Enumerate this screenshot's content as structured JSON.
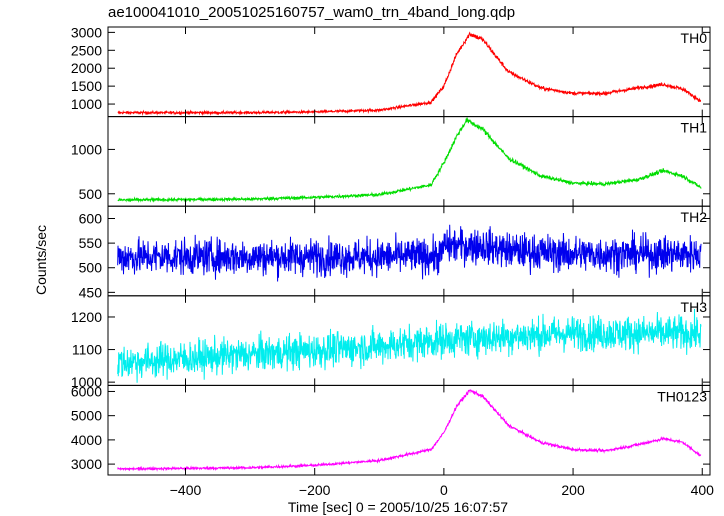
{
  "chart_data": {
    "type": "line",
    "title": "ae100041010_20051025160757_wam0_trn_4band_long.qdp",
    "xlabel": "Time [sec] 0 = 2005/10/25 16:07:57",
    "ylabel": "Counts/sec",
    "xlim": [
      -520,
      412
    ],
    "xticks": [
      -400,
      -200,
      0,
      200,
      400
    ],
    "xtick_labels": [
      "−400",
      "−200",
      "0",
      "200",
      "400"
    ],
    "grid": false,
    "panels": [
      {
        "label": "TH0",
        "color": "#ff0000",
        "ylim": [
          650,
          3150
        ],
        "yticks": [
          1000,
          1500,
          2000,
          2500,
          3000
        ],
        "ytick_labels": [
          "1000",
          "1500",
          "2000",
          "2500",
          "3000"
        ],
        "noise": 25,
        "profile": [
          [
            -500,
            760
          ],
          [
            -300,
            760
          ],
          [
            -200,
            780
          ],
          [
            -100,
            830
          ],
          [
            -20,
            1050
          ],
          [
            0,
            1500
          ],
          [
            20,
            2400
          ],
          [
            40,
            2960
          ],
          [
            60,
            2800
          ],
          [
            100,
            1900
          ],
          [
            150,
            1450
          ],
          [
            200,
            1300
          ],
          [
            250,
            1300
          ],
          [
            300,
            1450
          ],
          [
            340,
            1550
          ],
          [
            370,
            1420
          ],
          [
            400,
            1050
          ]
        ]
      },
      {
        "label": "TH1",
        "color": "#00dd00",
        "ylim": [
          360,
          1370
        ],
        "yticks": [
          500,
          1000
        ],
        "ytick_labels": [
          "500",
          "1000"
        ],
        "noise": 12,
        "profile": [
          [
            -500,
            430
          ],
          [
            -300,
            440
          ],
          [
            -200,
            460
          ],
          [
            -100,
            490
          ],
          [
            -20,
            600
          ],
          [
            0,
            850
          ],
          [
            20,
            1150
          ],
          [
            35,
            1330
          ],
          [
            60,
            1230
          ],
          [
            100,
            900
          ],
          [
            150,
            700
          ],
          [
            200,
            620
          ],
          [
            250,
            610
          ],
          [
            300,
            660
          ],
          [
            340,
            760
          ],
          [
            370,
            700
          ],
          [
            400,
            560
          ]
        ]
      },
      {
        "label": "TH2",
        "color": "#0000ee",
        "ylim": [
          443,
          625
        ],
        "yticks": [
          450,
          500,
          550,
          600
        ],
        "ytick_labels": [
          "450",
          "500",
          "550",
          "600"
        ],
        "noise": 26,
        "profile": [
          [
            -500,
            522
          ],
          [
            -100,
            522
          ],
          [
            -5,
            524
          ],
          [
            0,
            545
          ],
          [
            60,
            545
          ],
          [
            100,
            535
          ],
          [
            200,
            528
          ],
          [
            400,
            528
          ]
        ]
      },
      {
        "label": "TH3",
        "color": "#00eeee",
        "ylim": [
          990,
          1265
        ],
        "yticks": [
          1000,
          1100,
          1200
        ],
        "ytick_labels": [
          "1000",
          "1100",
          "1200"
        ],
        "noise": 38,
        "profile": [
          [
            -500,
            1060
          ],
          [
            -300,
            1085
          ],
          [
            -100,
            1110
          ],
          [
            0,
            1130
          ],
          [
            200,
            1150
          ],
          [
            400,
            1150
          ]
        ]
      },
      {
        "label": "TH0123",
        "color": "#ff00ff",
        "ylim": [
          2550,
          6250
        ],
        "yticks": [
          3000,
          4000,
          5000,
          6000
        ],
        "ytick_labels": [
          "3000",
          "4000",
          "5000",
          "6000"
        ],
        "noise": 35,
        "profile": [
          [
            -500,
            2800
          ],
          [
            -300,
            2850
          ],
          [
            -200,
            2950
          ],
          [
            -100,
            3150
          ],
          [
            -20,
            3600
          ],
          [
            0,
            4300
          ],
          [
            20,
            5400
          ],
          [
            40,
            6050
          ],
          [
            60,
            5800
          ],
          [
            100,
            4600
          ],
          [
            150,
            3900
          ],
          [
            200,
            3600
          ],
          [
            250,
            3550
          ],
          [
            300,
            3800
          ],
          [
            340,
            4050
          ],
          [
            370,
            3900
          ],
          [
            400,
            3300
          ]
        ]
      }
    ]
  }
}
